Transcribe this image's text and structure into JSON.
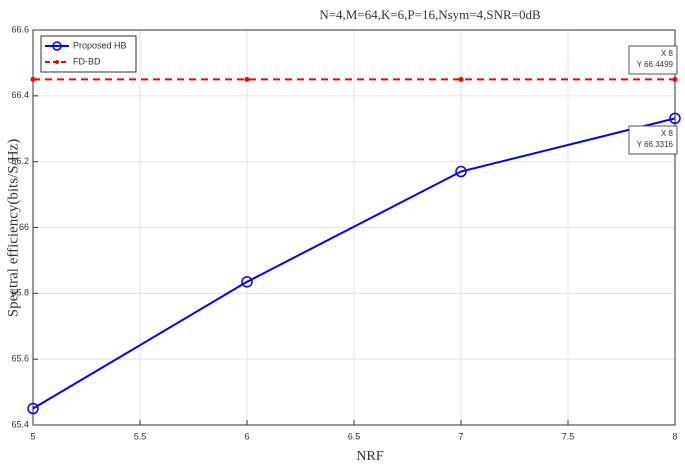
{
  "chart_data": {
    "type": "line",
    "title": "N=4,M=64,K=6,P=16,Nsym=4,SNR=0dB",
    "xlabel": "NRF",
    "ylabel": "Spectral efficiency(bits/S/Hz)",
    "x": [
      5,
      6,
      7,
      8
    ],
    "series": [
      {
        "name": "Proposed HB",
        "color": "#0000ff",
        "marker": "circle",
        "dash": false,
        "values": [
          65.45,
          65.835,
          66.17,
          66.3316
        ]
      },
      {
        "name": "FD-BD",
        "color": "#ff0000",
        "marker": "dot",
        "dash": true,
        "values": [
          66.4499,
          66.4499,
          66.4499,
          66.4499
        ]
      }
    ],
    "xlim": [
      5,
      8
    ],
    "xticks": [
      5,
      5.5,
      6,
      6.5,
      7,
      7.5,
      8
    ],
    "ylim": [
      65.4,
      66.6
    ],
    "yticks": [
      65.4,
      65.6,
      65.8,
      66,
      66.2,
      66.4,
      66.6
    ],
    "grid": true,
    "legend": "top-left",
    "datatips": [
      {
        "series": 1,
        "index": 3,
        "lines": [
          "X 8",
          "Y 66.4499"
        ]
      },
      {
        "series": 0,
        "index": 3,
        "lines": [
          "X 8",
          "Y 66.3316"
        ]
      }
    ]
  }
}
